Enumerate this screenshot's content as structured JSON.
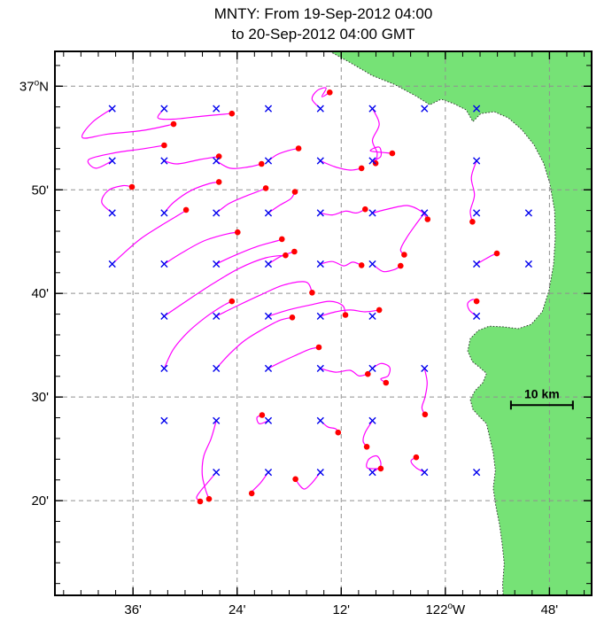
{
  "title": {
    "line1": "MNTY: From 19-Sep-2012 04:00",
    "line2": "to 20-Sep-2012 04:00 GMT"
  },
  "map": {
    "extent": {
      "lon_min": -122.75,
      "lon_max": -121.719,
      "lat_min": 36.181,
      "lat_max": 37.056
    },
    "x_ticks": [
      {
        "lon": -122.6,
        "label": "36'"
      },
      {
        "lon": -122.4,
        "label": "24'"
      },
      {
        "lon": -122.2,
        "label": "12'"
      },
      {
        "lon": -122.0,
        "label": "122°W"
      },
      {
        "lon": -121.8,
        "label": "48'"
      }
    ],
    "y_ticks": [
      {
        "lat": 37.0,
        "label": "37°N"
      },
      {
        "lat": 36.8333,
        "label": "50'"
      },
      {
        "lat": 36.6667,
        "label": "40'"
      },
      {
        "lat": 36.5,
        "label": "30'"
      },
      {
        "lat": 36.3333,
        "label": "20'"
      }
    ],
    "minor_tick_minutes": 2,
    "colors": {
      "land": "#76e276",
      "coastline": "#333333",
      "grid": "#909090",
      "frame": "#000000",
      "trajectory": "#ff00ff",
      "release_marker": "#0000ee",
      "end_marker": "#ff0000"
    },
    "scale_bar": {
      "label": "10 km",
      "lon_start": -121.874,
      "lon_end": -121.755,
      "lat": 36.487
    },
    "land_polygon": [
      [
        -122.222,
        37.056
      ],
      [
        -122.183,
        37.038
      ],
      [
        -122.14,
        37.017
      ],
      [
        -122.098,
        37.003
      ],
      [
        -122.056,
        36.984
      ],
      [
        -122.03,
        36.97
      ],
      [
        -122.008,
        36.979
      ],
      [
        -121.984,
        36.972
      ],
      [
        -121.96,
        36.962
      ],
      [
        -121.947,
        36.943
      ],
      [
        -121.932,
        36.956
      ],
      [
        -121.906,
        36.959
      ],
      [
        -121.879,
        36.949
      ],
      [
        -121.853,
        36.93
      ],
      [
        -121.83,
        36.906
      ],
      [
        -121.811,
        36.876
      ],
      [
        -121.799,
        36.842
      ],
      [
        -121.79,
        36.799
      ],
      [
        -121.789,
        36.756
      ],
      [
        -121.792,
        36.714
      ],
      [
        -121.801,
        36.671
      ],
      [
        -121.814,
        36.637
      ],
      [
        -121.835,
        36.617
      ],
      [
        -121.86,
        36.61
      ],
      [
        -121.889,
        36.613
      ],
      [
        -121.916,
        36.614
      ],
      [
        -121.937,
        36.607
      ],
      [
        -121.952,
        36.594
      ],
      [
        -121.957,
        36.574
      ],
      [
        -121.948,
        36.557
      ],
      [
        -121.933,
        36.547
      ],
      [
        -121.921,
        36.538
      ],
      [
        -121.928,
        36.523
      ],
      [
        -121.943,
        36.51
      ],
      [
        -121.952,
        36.496
      ],
      [
        -121.947,
        36.48
      ],
      [
        -121.935,
        36.469
      ],
      [
        -121.921,
        36.457
      ],
      [
        -121.915,
        36.436
      ],
      [
        -121.908,
        36.41
      ],
      [
        -121.904,
        36.382
      ],
      [
        -121.908,
        36.353
      ],
      [
        -121.903,
        36.325
      ],
      [
        -121.896,
        36.295
      ],
      [
        -121.891,
        36.265
      ],
      [
        -121.887,
        36.232
      ],
      [
        -121.89,
        36.198
      ],
      [
        -121.889,
        36.181
      ],
      [
        -121.719,
        36.181
      ],
      [
        -121.719,
        37.056
      ]
    ],
    "release_points": [
      [
        -122.44,
        36.964
      ],
      [
        -122.34,
        36.964
      ],
      [
        -122.04,
        36.964
      ],
      [
        -121.94,
        36.964
      ],
      [
        -121.94,
        36.796
      ],
      [
        -121.84,
        36.796
      ],
      [
        -121.84,
        36.714
      ],
      [
        -122.14,
        36.63
      ],
      [
        -122.54,
        36.462
      ],
      [
        -121.94,
        36.379
      ]
    ],
    "trajectories": [
      [
        [
          -122.64,
          36.964
        ],
        [
          -122.678,
          36.942
        ],
        [
          -122.697,
          36.917
        ],
        [
          -122.648,
          36.923
        ],
        [
          -122.58,
          36.929
        ],
        [
          -122.522,
          36.939
        ]
      ],
      [
        [
          -122.54,
          36.964
        ],
        [
          -122.552,
          36.949
        ],
        [
          -122.522,
          36.947
        ],
        [
          -122.464,
          36.952
        ],
        [
          -122.41,
          36.956
        ]
      ],
      [
        [
          -122.24,
          36.964
        ],
        [
          -122.256,
          36.979
        ],
        [
          -122.246,
          36.993
        ],
        [
          -122.229,
          36.997
        ],
        [
          -122.237,
          36.983
        ],
        [
          -122.222,
          36.99
        ]
      ],
      [
        [
          -122.14,
          36.964
        ],
        [
          -122.127,
          36.939
        ],
        [
          -122.14,
          36.913
        ],
        [
          -122.131,
          36.893
        ],
        [
          -122.134,
          36.876
        ]
      ],
      [
        [
          -122.64,
          36.88
        ],
        [
          -122.671,
          36.868
        ],
        [
          -122.685,
          36.882
        ],
        [
          -122.634,
          36.893
        ],
        [
          -122.583,
          36.899
        ],
        [
          -122.54,
          36.905
        ]
      ],
      [
        [
          -122.54,
          36.88
        ],
        [
          -122.515,
          36.875
        ],
        [
          -122.472,
          36.882
        ],
        [
          -122.435,
          36.887
        ]
      ],
      [
        [
          -122.44,
          36.88
        ],
        [
          -122.413,
          36.868
        ],
        [
          -122.379,
          36.87
        ],
        [
          -122.353,
          36.875
        ]
      ],
      [
        [
          -122.34,
          36.88
        ],
        [
          -122.323,
          36.89
        ],
        [
          -122.299,
          36.897
        ],
        [
          -122.282,
          36.9
        ]
      ],
      [
        [
          -122.24,
          36.88
        ],
        [
          -122.211,
          36.87
        ],
        [
          -122.183,
          36.865
        ],
        [
          -122.161,
          36.868
        ]
      ],
      [
        [
          -122.14,
          36.88
        ],
        [
          -122.124,
          36.887
        ],
        [
          -122.127,
          36.902
        ],
        [
          -122.144,
          36.896
        ],
        [
          -122.115,
          36.893
        ],
        [
          -122.102,
          36.892
        ]
      ],
      [
        [
          -121.94,
          36.88
        ],
        [
          -121.95,
          36.853
        ],
        [
          -121.944,
          36.825
        ],
        [
          -121.952,
          36.799
        ],
        [
          -121.948,
          36.782
        ]
      ],
      [
        [
          -122.64,
          36.796
        ],
        [
          -122.66,
          36.813
        ],
        [
          -122.648,
          36.832
        ],
        [
          -122.62,
          36.84
        ],
        [
          -122.602,
          36.838
        ]
      ],
      [
        [
          -122.54,
          36.796
        ],
        [
          -122.522,
          36.813
        ],
        [
          -122.489,
          36.832
        ],
        [
          -122.455,
          36.843
        ],
        [
          -122.435,
          36.846
        ]
      ],
      [
        [
          -122.44,
          36.796
        ],
        [
          -122.416,
          36.811
        ],
        [
          -122.387,
          36.822
        ],
        [
          -122.362,
          36.83
        ],
        [
          -122.345,
          36.836
        ]
      ],
      [
        [
          -122.34,
          36.796
        ],
        [
          -122.319,
          36.808
        ],
        [
          -122.297,
          36.819
        ],
        [
          -122.289,
          36.83
        ]
      ],
      [
        [
          -122.24,
          36.796
        ],
        [
          -122.217,
          36.793
        ],
        [
          -122.192,
          36.799
        ],
        [
          -122.171,
          36.796
        ],
        [
          -122.154,
          36.802
        ]
      ],
      [
        [
          -122.14,
          36.796
        ],
        [
          -122.107,
          36.803
        ],
        [
          -122.073,
          36.808
        ],
        [
          -122.047,
          36.799
        ],
        [
          -122.034,
          36.786
        ]
      ],
      [
        [
          -122.04,
          36.796
        ],
        [
          -122.059,
          36.775
        ],
        [
          -122.076,
          36.754
        ],
        [
          -122.086,
          36.737
        ],
        [
          -122.079,
          36.729
        ]
      ],
      [
        [
          -122.64,
          36.714
        ],
        [
          -122.617,
          36.732
        ],
        [
          -122.583,
          36.756
        ],
        [
          -122.54,
          36.779
        ],
        [
          -122.506,
          36.796
        ],
        [
          -122.498,
          36.801
        ]
      ],
      [
        [
          -122.54,
          36.714
        ],
        [
          -122.506,
          36.732
        ],
        [
          -122.464,
          36.751
        ],
        [
          -122.421,
          36.762
        ],
        [
          -122.399,
          36.765
        ]
      ],
      [
        [
          -122.44,
          36.714
        ],
        [
          -122.404,
          36.728
        ],
        [
          -122.362,
          36.742
        ],
        [
          -122.324,
          36.751
        ],
        [
          -122.314,
          36.754
        ]
      ],
      [
        [
          -122.34,
          36.714
        ],
        [
          -122.319,
          36.725
        ],
        [
          -122.301,
          36.731
        ],
        [
          -122.29,
          36.734
        ]
      ],
      [
        [
          -122.24,
          36.714
        ],
        [
          -122.217,
          36.718
        ],
        [
          -122.195,
          36.711
        ],
        [
          -122.178,
          36.717
        ],
        [
          -122.161,
          36.712
        ]
      ],
      [
        [
          -122.14,
          36.714
        ],
        [
          -122.12,
          36.702
        ],
        [
          -122.098,
          36.705
        ],
        [
          -122.086,
          36.711
        ]
      ],
      [
        [
          -121.94,
          36.714
        ],
        [
          -121.923,
          36.722
        ],
        [
          -121.91,
          36.728
        ],
        [
          -121.901,
          36.731
        ]
      ],
      [
        [
          -122.54,
          36.63
        ],
        [
          -122.498,
          36.654
        ],
        [
          -122.447,
          36.682
        ],
        [
          -122.396,
          36.707
        ],
        [
          -122.345,
          36.724
        ],
        [
          -122.307,
          36.728
        ]
      ],
      [
        [
          -122.44,
          36.63
        ],
        [
          -122.399,
          36.647
        ],
        [
          -122.353,
          36.665
        ],
        [
          -122.311,
          36.68
        ],
        [
          -122.268,
          36.685
        ],
        [
          -122.256,
          36.668
        ]
      ],
      [
        [
          -122.34,
          36.63
        ],
        [
          -122.302,
          36.64
        ],
        [
          -122.26,
          36.648
        ],
        [
          -122.222,
          36.654
        ],
        [
          -122.197,
          36.647
        ],
        [
          -122.192,
          36.632
        ]
      ],
      [
        [
          -122.24,
          36.63
        ],
        [
          -122.211,
          36.637
        ],
        [
          -122.182,
          36.64
        ],
        [
          -122.154,
          36.637
        ],
        [
          -122.127,
          36.64
        ]
      ],
      [
        [
          -121.94,
          36.63
        ],
        [
          -121.954,
          36.64
        ],
        [
          -121.957,
          36.651
        ],
        [
          -121.947,
          36.657
        ],
        [
          -121.94,
          36.654
        ]
      ],
      [
        [
          -122.54,
          36.546
        ],
        [
          -122.523,
          36.576
        ],
        [
          -122.495,
          36.604
        ],
        [
          -122.461,
          36.628
        ],
        [
          -122.427,
          36.647
        ],
        [
          -122.41,
          36.654
        ]
      ],
      [
        [
          -122.44,
          36.546
        ],
        [
          -122.416,
          36.568
        ],
        [
          -122.387,
          36.59
        ],
        [
          -122.353,
          36.608
        ],
        [
          -122.319,
          36.623
        ],
        [
          -122.294,
          36.628
        ]
      ],
      [
        [
          -122.34,
          36.546
        ],
        [
          -122.314,
          36.557
        ],
        [
          -122.285,
          36.568
        ],
        [
          -122.26,
          36.577
        ],
        [
          -122.243,
          36.58
        ]
      ],
      [
        [
          -122.24,
          36.546
        ],
        [
          -122.211,
          36.54
        ],
        [
          -122.183,
          36.543
        ],
        [
          -122.166,
          36.534
        ],
        [
          -122.149,
          36.537
        ]
      ],
      [
        [
          -122.14,
          36.546
        ],
        [
          -122.124,
          36.554
        ],
        [
          -122.107,
          36.548
        ],
        [
          -122.11,
          36.534
        ],
        [
          -122.124,
          36.529
        ],
        [
          -122.114,
          36.523
        ]
      ],
      [
        [
          -122.04,
          36.546
        ],
        [
          -122.035,
          36.523
        ],
        [
          -122.039,
          36.5
        ],
        [
          -122.045,
          36.483
        ],
        [
          -122.039,
          36.472
        ]
      ],
      [
        [
          -122.44,
          36.462
        ],
        [
          -122.45,
          36.433
        ],
        [
          -122.464,
          36.405
        ],
        [
          -122.467,
          36.376
        ],
        [
          -122.461,
          36.352
        ],
        [
          -122.454,
          36.336
        ]
      ],
      [
        [
          -122.34,
          36.462
        ],
        [
          -122.357,
          36.457
        ],
        [
          -122.362,
          36.467
        ],
        [
          -122.352,
          36.471
        ]
      ],
      [
        [
          -122.24,
          36.462
        ],
        [
          -122.226,
          36.452
        ],
        [
          -122.211,
          36.449
        ],
        [
          -122.206,
          36.443
        ]
      ],
      [
        [
          -122.14,
          36.462
        ],
        [
          -122.154,
          36.443
        ],
        [
          -122.158,
          36.429
        ],
        [
          -122.151,
          36.42
        ]
      ],
      [
        [
          -122.44,
          36.379
        ],
        [
          -122.457,
          36.362
        ],
        [
          -122.471,
          36.348
        ],
        [
          -122.478,
          36.338
        ],
        [
          -122.471,
          36.332
        ]
      ],
      [
        [
          -122.34,
          36.379
        ],
        [
          -122.355,
          36.362
        ],
        [
          -122.369,
          36.35
        ],
        [
          -122.372,
          36.345
        ]
      ],
      [
        [
          -122.24,
          36.379
        ],
        [
          -122.256,
          36.362
        ],
        [
          -122.27,
          36.352
        ],
        [
          -122.28,
          36.358
        ],
        [
          -122.288,
          36.368
        ]
      ],
      [
        [
          -122.14,
          36.379
        ],
        [
          -122.124,
          36.39
        ],
        [
          -122.131,
          36.405
        ],
        [
          -122.147,
          36.4
        ],
        [
          -122.15,
          36.386
        ],
        [
          -122.124,
          36.385
        ]
      ],
      [
        [
          -122.04,
          36.379
        ],
        [
          -122.056,
          36.386
        ],
        [
          -122.066,
          36.397
        ],
        [
          -122.056,
          36.403
        ]
      ]
    ]
  }
}
